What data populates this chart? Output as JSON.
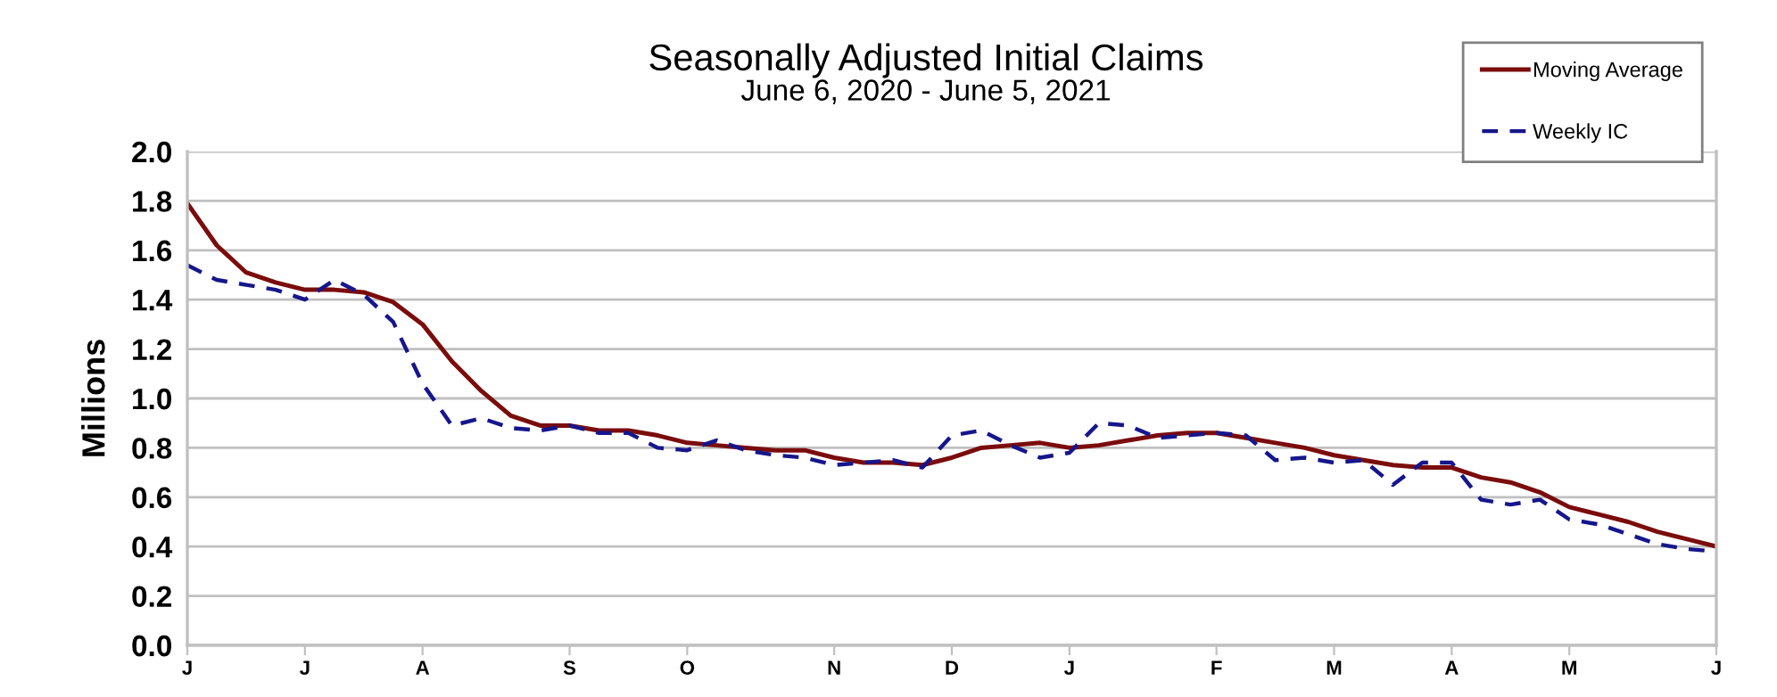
{
  "chart_data": {
    "type": "line",
    "title": "Seasonally Adjusted Initial Claims",
    "subtitle": "June 6, 2020 - June 5, 2021",
    "ylabel": "Millions",
    "categories": [
      "J",
      null,
      null,
      null,
      "J",
      null,
      null,
      null,
      "A",
      null,
      null,
      null,
      null,
      "S",
      null,
      null,
      null,
      "O",
      null,
      null,
      null,
      null,
      "N",
      null,
      null,
      null,
      "D",
      null,
      null,
      null,
      "J",
      null,
      null,
      null,
      null,
      "F",
      null,
      null,
      null,
      "M",
      null,
      null,
      null,
      "A",
      null,
      null,
      null,
      "M",
      null,
      null,
      null,
      null,
      "J"
    ],
    "series": [
      {
        "name": "Moving Average",
        "color": "#7b0c0c",
        "line_style": "solid",
        "values": [
          1.79,
          1.62,
          1.51,
          1.47,
          1.44,
          1.44,
          1.43,
          1.39,
          1.3,
          1.15,
          1.03,
          0.93,
          0.89,
          0.89,
          0.87,
          0.87,
          0.85,
          0.82,
          0.81,
          0.8,
          0.79,
          0.79,
          0.76,
          0.74,
          0.74,
          0.73,
          0.76,
          0.8,
          0.81,
          0.82,
          0.8,
          0.81,
          0.83,
          0.85,
          0.86,
          0.86,
          0.84,
          0.82,
          0.8,
          0.77,
          0.75,
          0.73,
          0.72,
          0.72,
          0.68,
          0.66,
          0.62,
          0.56,
          0.53,
          0.5,
          0.46,
          0.43,
          0.4
        ]
      },
      {
        "name": "Weekly IC",
        "color": "#16168c",
        "line_style": "dashed",
        "values": [
          1.54,
          1.48,
          1.46,
          1.44,
          1.4,
          1.48,
          1.42,
          1.31,
          1.06,
          0.89,
          0.92,
          0.88,
          0.87,
          0.89,
          0.86,
          0.86,
          0.8,
          0.79,
          0.83,
          0.79,
          0.77,
          0.76,
          0.73,
          0.74,
          0.75,
          0.72,
          0.85,
          0.87,
          0.81,
          0.76,
          0.78,
          0.9,
          0.89,
          0.84,
          0.85,
          0.86,
          0.85,
          0.75,
          0.76,
          0.74,
          0.75,
          0.65,
          0.74,
          0.74,
          0.59,
          0.57,
          0.59,
          0.51,
          0.49,
          0.45,
          0.41,
          0.39,
          0.38
        ]
      }
    ],
    "ylim": [
      0,
      2.0
    ],
    "yticks": [
      {
        "value": 0,
        "label": "0.0"
      },
      {
        "value": 0.2,
        "label": "0.2"
      },
      {
        "value": 0.4,
        "label": "0.4"
      },
      {
        "value": 0.6,
        "label": "0.6"
      },
      {
        "value": 0.8,
        "label": "0.8"
      },
      {
        "value": 1.0,
        "label": "1.0"
      },
      {
        "value": 1.2,
        "label": "1.2"
      },
      {
        "value": 1.4,
        "label": "1.4"
      },
      {
        "value": 1.6,
        "label": "1.6"
      },
      {
        "value": 1.8,
        "label": "1.8"
      },
      {
        "value": 2.0,
        "label": "2.0"
      }
    ],
    "grid": "y",
    "legend": "top right",
    "marker": "none"
  }
}
